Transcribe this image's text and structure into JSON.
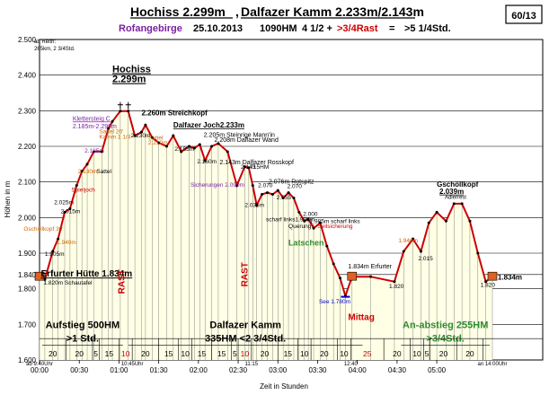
{
  "header": {
    "title_part1": "Hochiss 2.299m",
    "title_sep": ",",
    "title_part2": "Dalfazer Kamm 2.233m/2.143m",
    "page_badge": "60/13",
    "region": "Rofangebirge",
    "date": "25.10.2013",
    "summary_hm": "1090HM",
    "summary_time_a": "4 1/2 +",
    "summary_rast": ">3/4Rast",
    "summary_eq": "=",
    "summary_total": ">5 1/4Std."
  },
  "chart_data": {
    "type": "area",
    "xlabel": "Zeit in Stunden",
    "ylabel": "Höhen in m",
    "ylim": [
      1600,
      2500
    ],
    "xlim": [
      0,
      380
    ],
    "x_unit": "minutes from 00:00",
    "y_ticks": [
      {
        "v": 1600,
        "label": "1.600"
      },
      {
        "v": 1700,
        "label": "1.700"
      },
      {
        "v": 1800,
        "label": "1.800"
      },
      {
        "v": 1840,
        "label": "1.840"
      },
      {
        "v": 1900,
        "label": "1.900"
      },
      {
        "v": 2000,
        "label": "2.000"
      },
      {
        "v": 2100,
        "label": "2.100"
      },
      {
        "v": 2200,
        "label": "2.200"
      },
      {
        "v": 2300,
        "label": "2.300"
      },
      {
        "v": 2400,
        "label": "2.400"
      },
      {
        "v": 2500,
        "label": "2.500"
      }
    ],
    "x_ticks": [
      {
        "t": 0,
        "label": "00:00"
      },
      {
        "t": 30,
        "label": "00:30"
      },
      {
        "t": 60,
        "label": "01:00"
      },
      {
        "t": 90,
        "label": "01:30"
      },
      {
        "t": 120,
        "label": "02:00"
      },
      {
        "t": 150,
        "label": "02:30"
      },
      {
        "t": 180,
        "label": "03:00"
      },
      {
        "t": 210,
        "label": "03:30"
      },
      {
        "t": 240,
        "label": "04:00"
      },
      {
        "t": 270,
        "label": "04:30"
      },
      {
        "t": 300,
        "label": "05:00"
      }
    ],
    "profile": [
      [
        0,
        1834
      ],
      [
        4,
        1826
      ],
      [
        10,
        1905
      ],
      [
        14,
        1940
      ],
      [
        19,
        2015
      ],
      [
        23,
        2025
      ],
      [
        28,
        2090
      ],
      [
        32,
        2130
      ],
      [
        36,
        2150
      ],
      [
        41,
        2185
      ],
      [
        47,
        2185
      ],
      [
        52,
        2250
      ],
      [
        55,
        2270
      ],
      [
        61,
        2299
      ],
      [
        67,
        2299
      ],
      [
        72,
        2230
      ],
      [
        77,
        2240
      ],
      [
        80,
        2260
      ],
      [
        85,
        2225
      ],
      [
        90,
        2210
      ],
      [
        96,
        2200
      ],
      [
        101,
        2230
      ],
      [
        107,
        2185
      ],
      [
        113,
        2200
      ],
      [
        117,
        2195
      ],
      [
        121,
        2205
      ],
      [
        125,
        2160
      ],
      [
        130,
        2200
      ],
      [
        135,
        2208
      ],
      [
        142,
        2185
      ],
      [
        149,
        2090
      ],
      [
        155,
        2143
      ],
      [
        158,
        2140
      ],
      [
        161,
        2090
      ],
      [
        164,
        2035
      ],
      [
        168,
        2065
      ],
      [
        172,
        2070
      ],
      [
        176,
        2065
      ],
      [
        180,
        2076
      ],
      [
        184,
        2055
      ],
      [
        188,
        2070
      ],
      [
        192,
        2055
      ],
      [
        196,
        2015
      ],
      [
        200,
        1990
      ],
      [
        203,
        1995
      ],
      [
        207,
        1970
      ],
      [
        212,
        1985
      ],
      [
        217,
        1920
      ],
      [
        222,
        1870
      ],
      [
        227,
        1830
      ],
      [
        231,
        1780
      ],
      [
        236,
        1834
      ],
      [
        250,
        1834
      ],
      [
        268,
        1820
      ],
      [
        275,
        1905
      ],
      [
        282,
        1940
      ],
      [
        288,
        1905
      ],
      [
        294,
        1985
      ],
      [
        300,
        2015
      ],
      [
        307,
        1990
      ],
      [
        313,
        2039
      ],
      [
        319,
        2039
      ],
      [
        325,
        1990
      ],
      [
        331,
        1900
      ],
      [
        337,
        1820
      ],
      [
        342,
        1834
      ]
    ],
    "point_labels": [
      {
        "t": 1,
        "y": 1834,
        "text": "Erfurter Hütte 1.834m",
        "size": 10,
        "color": "#000000",
        "underline": true
      },
      {
        "t": 3,
        "y": 1812,
        "text": "1.820m Schautafel",
        "size": 6.5,
        "color": "#000000"
      },
      {
        "t": 4,
        "y": 1892,
        "text": "1.905m",
        "size": 6.5,
        "color": "#000000"
      },
      {
        "t": -12,
        "y": 1963,
        "text": "Gschöllkopf 30'",
        "size": 6.5,
        "color": "#cc6600"
      },
      {
        "t": 13,
        "y": 1925,
        "text": "1.940m",
        "size": 6.5,
        "color": "#cc6600"
      },
      {
        "t": 16,
        "y": 2012,
        "text": "2.015m",
        "size": 6.5,
        "color": "#000000"
      },
      {
        "t": 11,
        "y": 2037,
        "text": "2.025m",
        "size": 6.5,
        "color": "#000000"
      },
      {
        "t": 24,
        "y": 2073,
        "text": "Spieljoch",
        "size": 6.5,
        "color": "#cc0000"
      },
      {
        "t": 29,
        "y": 2125,
        "text": "2.130m",
        "size": 6.5,
        "color": "#cc6600"
      },
      {
        "t": 43,
        "y": 2125,
        "text": "Sattel",
        "size": 6.5,
        "color": "#000000"
      },
      {
        "t": 34,
        "y": 2182,
        "text": "2.185m",
        "size": 6.5,
        "color": "#7b1fa2"
      },
      {
        "t": 25,
        "y": 2272,
        "text": "Klettersteig C",
        "size": 7,
        "color": "#7b1fa2",
        "underline": true
      },
      {
        "t": 25,
        "y": 2251,
        "text": "2.185m-2.299m",
        "size": 7,
        "color": "#7b1fa2"
      },
      {
        "t": 45,
        "y": 2236,
        "text": "Sattel 20'",
        "size": 6.5,
        "color": "#cc6600"
      },
      {
        "t": 45,
        "y": 2222,
        "text": "Kamm 1 1/4",
        "size": 6.5,
        "color": "#cc6600"
      },
      {
        "t": 55,
        "y": 2408,
        "text": "Hochiss",
        "size": 11,
        "color": "#000000",
        "underline": true
      },
      {
        "t": 55,
        "y": 2380,
        "text": "2.299m",
        "size": 11,
        "color": "#000000",
        "underline": true
      },
      {
        "t": 69,
        "y": 2225,
        "text": "2.230m",
        "size": 6.5,
        "color": "#000000"
      },
      {
        "t": 82,
        "y": 2219,
        "text": "Sattel",
        "size": 6.5,
        "color": "#cc6600"
      },
      {
        "t": 82,
        "y": 2205,
        "text": "2.210m",
        "size": 6.5,
        "color": "#cc6600"
      },
      {
        "t": 77,
        "y": 2287,
        "text": "2.260m Streichkopf",
        "size": 8,
        "color": "#000000"
      },
      {
        "t": 101,
        "y": 2253,
        "text": "Dalfazer Joch2.233m",
        "size": 8,
        "color": "#000000",
        "underline": true
      },
      {
        "t": 102,
        "y": 2188,
        "text": "2.185m",
        "size": 6.5,
        "color": "#000000"
      },
      {
        "t": 119,
        "y": 2152,
        "text": "2.160m",
        "size": 6.5,
        "color": "#000000"
      },
      {
        "t": 124,
        "y": 2226,
        "text": "2.205m Steinrige Mann'in",
        "size": 7,
        "color": "#000000"
      },
      {
        "t": 132,
        "y": 2212,
        "text": "2.208m Dalfazer Wand",
        "size": 7,
        "color": "#000000"
      },
      {
        "t": 114,
        "y": 2087,
        "text": "Sicherungen 2.090m",
        "size": 6.5,
        "color": "#7b1fa2"
      },
      {
        "t": 136,
        "y": 2150,
        "text": "2.143m Dalfazer Rosskopf",
        "size": 7,
        "color": "#000000"
      },
      {
        "t": 152,
        "y": 2137,
        "text": "2.143",
        "size": 6.5,
        "color": "#000000"
      },
      {
        "t": 159,
        "y": 2137,
        "text": "715HM",
        "size": 6.5,
        "color": "#000000"
      },
      {
        "t": 155,
        "y": 2030,
        "text": "2.035m",
        "size": 6.5,
        "color": "#000000"
      },
      {
        "t": 165,
        "y": 2085,
        "text": "2.070",
        "size": 6.5,
        "color": "#000000"
      },
      {
        "t": 173,
        "y": 2095,
        "text": "2.076m Rotspitz",
        "size": 7,
        "color": "#000000"
      },
      {
        "t": 179,
        "y": 2051,
        "text": "2.055",
        "size": 6.5,
        "color": "#000000"
      },
      {
        "t": 187,
        "y": 2083,
        "text": "2.070",
        "size": 6.5,
        "color": "#000000"
      },
      {
        "t": 199,
        "y": 2005,
        "text": "2.000",
        "size": 6.5,
        "color": "#000000"
      },
      {
        "t": 171,
        "y": 1990,
        "text": "scharf links1.990m",
        "size": 6.5,
        "color": "#000000"
      },
      {
        "t": 204,
        "y": 1985,
        "text": "1.985m scharf links",
        "size": 6.5,
        "color": "#000000"
      },
      {
        "t": 188,
        "y": 1971,
        "text": "Querung l",
        "size": 6.5,
        "color": "#000000"
      },
      {
        "t": 210,
        "y": 1971,
        "text": "Seilsicherung",
        "size": 6.5,
        "color": "#cc0000"
      },
      {
        "t": 188,
        "y": 1922,
        "text": "Latschen",
        "size": 9,
        "color": "#2e8b2e"
      },
      {
        "t": 211,
        "y": 1759,
        "text": "See 1.780m",
        "size": 6.5,
        "color": "#0000cc"
      },
      {
        "t": 233,
        "y": 1857,
        "text": "1.834m Erfurter",
        "size": 7,
        "color": "#000000"
      },
      {
        "t": 233,
        "y": 1712,
        "text": "Mittag",
        "size": 10,
        "color": "#cc0000"
      },
      {
        "t": 264,
        "y": 1802,
        "text": "1.820",
        "size": 6.5,
        "color": "#000000"
      },
      {
        "t": 271,
        "y": 1930,
        "text": "1.940m",
        "size": 6.5,
        "color": "#cc6600"
      },
      {
        "t": 286,
        "y": 1880,
        "text": "2.015",
        "size": 6.5,
        "color": "#000000"
      },
      {
        "t": 300,
        "y": 2087,
        "text": "Gschöllkopf",
        "size": 8,
        "color": "#000000"
      },
      {
        "t": 302,
        "y": 2067,
        "text": "2.039m",
        "size": 8,
        "color": "#000000",
        "underline": true
      },
      {
        "t": 306,
        "y": 2052,
        "text": "Adlerrest",
        "size": 6,
        "color": "#000000"
      },
      {
        "t": 333,
        "y": 1805,
        "text": "1.820",
        "size": 6.5,
        "color": "#000000"
      },
      {
        "t": 346,
        "y": 1826,
        "text": "1.834m",
        "size": 8,
        "color": "#000000"
      },
      {
        "t": -4,
        "y": 2490,
        "text": "ab Reith:",
        "size": 6,
        "color": "#000000"
      },
      {
        "t": -4,
        "y": 2470,
        "text": "265km, 2 3/4Std.",
        "size": 6,
        "color": "#000000"
      }
    ],
    "rast_labels": [
      {
        "t": 64,
        "y": 1820,
        "text": "RAST"
      },
      {
        "t": 157,
        "y": 1840,
        "text": "RAST"
      }
    ],
    "stages": [
      {
        "t0": 0,
        "t1": 65,
        "y": 1700,
        "title": "Aufstieg 500HM",
        "sub": ">1 Std.",
        "color": "#000000"
      },
      {
        "t0": 65,
        "t1": 246,
        "y": 1700,
        "title": "Dalfazer Kamm",
        "sub": "335HM  <2 3/4Std.",
        "color": "#000000"
      },
      {
        "t0": 271,
        "t1": 342,
        "y": 1700,
        "title": "An-abstieg 255HM",
        "sub": ">3/4Std.",
        "color": "#2e8b2e"
      }
    ],
    "segments": [
      {
        "t0": 0,
        "t1": 20,
        "label": "20",
        "c": "#000000"
      },
      {
        "t0": 20,
        "t1": 40,
        "label": "20",
        "c": "#000000"
      },
      {
        "t0": 40,
        "t1": 45,
        "label": "5",
        "c": "#000000"
      },
      {
        "t0": 45,
        "t1": 60,
        "label": "15",
        "c": "#000000"
      },
      {
        "t0": 60,
        "t1": 70,
        "label": "10",
        "c": "#cc0000"
      },
      {
        "t0": 70,
        "t1": 90,
        "label": "20",
        "c": "#000000"
      },
      {
        "t0": 90,
        "t1": 105,
        "label": "15",
        "c": "#000000"
      },
      {
        "t0": 105,
        "t1": 115,
        "label": "10",
        "c": "#000000"
      },
      {
        "t0": 115,
        "t1": 130,
        "label": "15",
        "c": "#000000"
      },
      {
        "t0": 130,
        "t1": 145,
        "label": "15",
        "c": "#000000"
      },
      {
        "t0": 145,
        "t1": 150,
        "label": "5",
        "c": "#000000"
      },
      {
        "t0": 150,
        "t1": 160,
        "label": "10",
        "c": "#cc0000"
      },
      {
        "t0": 160,
        "t1": 180,
        "label": "20",
        "c": "#000000"
      },
      {
        "t0": 180,
        "t1": 195,
        "label": "15",
        "c": "#000000"
      },
      {
        "t0": 195,
        "t1": 205,
        "label": "10",
        "c": "#000000"
      },
      {
        "t0": 205,
        "t1": 225,
        "label": "20",
        "c": "#000000"
      },
      {
        "t0": 225,
        "t1": 235,
        "label": "10",
        "c": "#000000"
      },
      {
        "t0": 235,
        "t1": 260,
        "label": "25",
        "c": "#cc0000"
      },
      {
        "t0": 260,
        "t1": 280,
        "label": "20",
        "c": "#000000"
      },
      {
        "t0": 280,
        "t1": 290,
        "label": "10",
        "c": "#000000"
      },
      {
        "t0": 290,
        "t1": 295,
        "label": "5",
        "c": "#000000"
      },
      {
        "t0": 295,
        "t1": 315,
        "label": "20",
        "c": "#000000"
      },
      {
        "t0": 315,
        "t1": 335,
        "label": "20",
        "c": "#000000"
      }
    ],
    "time_notes": [
      {
        "t": 0,
        "text": "ab 9:40Uhr"
      },
      {
        "t": 70,
        "text": "10:45Uhr"
      },
      {
        "t": 160,
        "text": "11:15"
      },
      {
        "t": 235,
        "text": "12:40"
      },
      {
        "t": 342,
        "text": "an 14:00Uhr"
      }
    ],
    "colors": {
      "profile_line": "#cc0000",
      "fill": "#ffffe6",
      "grid": "#000000",
      "hut_marker": "#e06020"
    }
  }
}
